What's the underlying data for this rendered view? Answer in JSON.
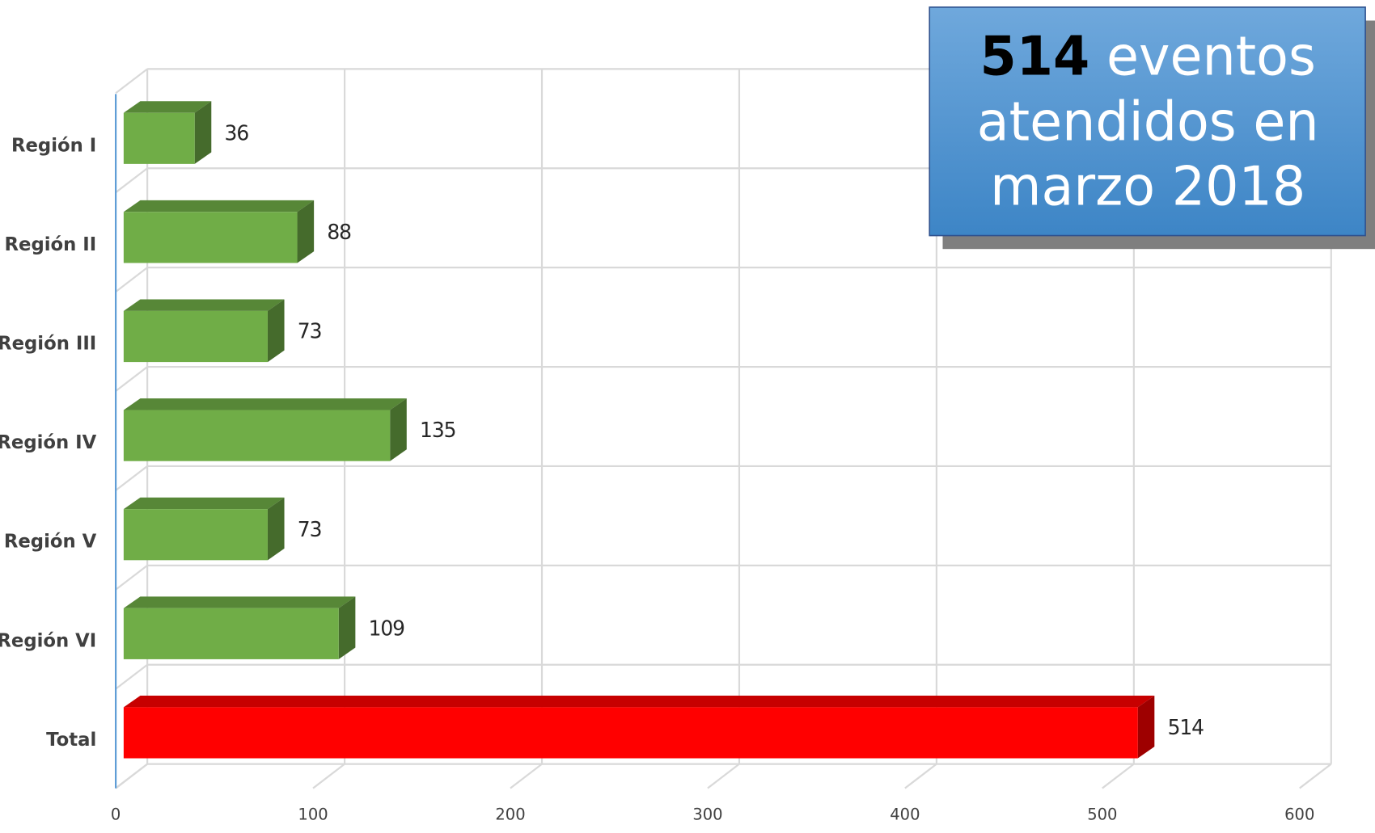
{
  "chart_data": {
    "type": "bar",
    "orientation": "horizontal",
    "categories": [
      "Región I",
      "Región II",
      "Región III",
      "Región IV",
      "Región V",
      "Región VI",
      "Total"
    ],
    "values": [
      36,
      88,
      73,
      135,
      73,
      109,
      514
    ],
    "colors": [
      "#70ad47",
      "#70ad47",
      "#70ad47",
      "#70ad47",
      "#70ad47",
      "#70ad47",
      "#ff0000"
    ],
    "xlim": [
      0,
      600
    ],
    "xticks": [
      0,
      100,
      200,
      300,
      400,
      500,
      600
    ],
    "grid": true,
    "annotation": {
      "highlight": "514",
      "lines": [
        "eventos",
        "atendidos en",
        "marzo 2018"
      ]
    }
  }
}
